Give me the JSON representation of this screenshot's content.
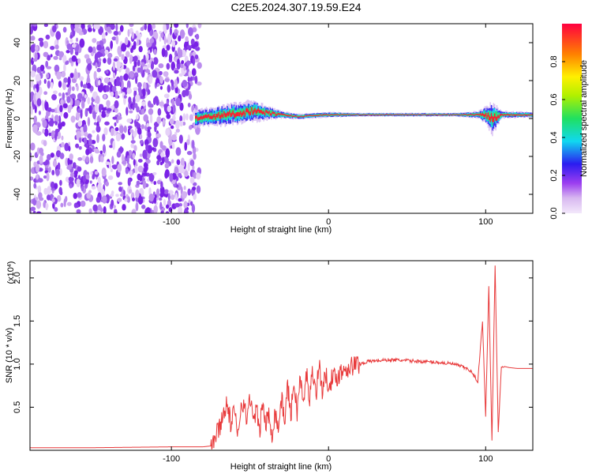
{
  "title": "C2E5.2024.307.19.59.E24",
  "chart_data": [
    {
      "type": "heatmap",
      "xlabel": "Height of straight line (km)",
      "ylabel": "Frequency (Hz)",
      "xlim": [
        -190,
        130
      ],
      "ylim": [
        -50,
        50
      ],
      "xticks": [
        -100,
        0,
        100
      ],
      "xtick_labels": [
        "-100",
        "0",
        "100"
      ],
      "yticks": [
        40,
        20,
        0,
        -20,
        -40
      ],
      "ytick_labels": [
        "40",
        "20",
        "0",
        "-20",
        "-40"
      ],
      "noise_region_x": [
        -190,
        -82
      ],
      "signal_track": {
        "x": [
          -85,
          -75,
          -65,
          -55,
          -48,
          -40,
          -30,
          -20,
          -10,
          0,
          20,
          40,
          60,
          80,
          95,
          100,
          104,
          110,
          130
        ],
        "freq": [
          0,
          1,
          2,
          3,
          4,
          3,
          2,
          1,
          1.5,
          2,
          2,
          2,
          2,
          2,
          2,
          2,
          0,
          2,
          2
        ],
        "spread": [
          5,
          5,
          6,
          6,
          6,
          4,
          2,
          1.5,
          1.5,
          1.5,
          1,
          1,
          1,
          1,
          2,
          5,
          9,
          2,
          1.5
        ]
      },
      "colorbar": {
        "label": "Normalized spectral amplitude",
        "range": [
          0,
          1
        ],
        "ticks": [
          0.0,
          0.2,
          0.4,
          0.6,
          0.8
        ],
        "tick_labels": [
          "0.0",
          "0.2",
          "0.4",
          "0.6",
          "0.8"
        ]
      }
    },
    {
      "type": "line",
      "xlabel": "Height of straight line (km)",
      "ylabel": "SNR (10 * v/v)",
      "scale_label": "(x10^4)",
      "scale_base": "(x10",
      "scale_exp": "4",
      "xlim": [
        -190,
        130
      ],
      "ylim": [
        0,
        2.2
      ],
      "xticks": [
        -100,
        0,
        100
      ],
      "xtick_labels": [
        "-100",
        "0",
        "100"
      ],
      "yticks": [
        0.5,
        1.0,
        1.5,
        2.0
      ],
      "ytick_labels": [
        "0.5",
        "1.0",
        "1.5",
        "2.0"
      ],
      "color": "#e8393a",
      "series": [
        {
          "x": [
            -190,
            -150,
            -100,
            -80,
            -75,
            -72,
            -68,
            -65,
            -62,
            -60,
            -58,
            -55,
            -52,
            -50,
            -48,
            -46,
            -44,
            -42,
            -40,
            -38,
            -36,
            -34,
            -32,
            -30,
            -28,
            -26,
            -24,
            -22,
            -20,
            -18,
            -16,
            -14,
            -12,
            -10,
            -8,
            -6,
            -4,
            -2,
            0,
            5,
            10,
            15,
            20,
            25,
            30,
            40,
            50,
            60,
            70,
            80,
            85,
            90,
            95,
            98,
            100,
            102,
            104,
            106,
            108,
            110,
            115,
            120,
            130
          ],
          "y": [
            0.03,
            0.03,
            0.04,
            0.04,
            0.05,
            0.15,
            0.35,
            0.55,
            0.3,
            0.45,
            0.2,
            0.6,
            0.35,
            0.65,
            0.3,
            0.5,
            0.2,
            0.55,
            0.3,
            0.4,
            0.2,
            0.45,
            0.25,
            0.6,
            0.35,
            0.75,
            0.4,
            0.8,
            0.45,
            0.85,
            0.5,
            0.9,
            0.6,
            0.95,
            0.65,
            1.0,
            0.7,
            0.85,
            0.8,
            0.85,
            0.95,
            0.98,
            1.0,
            1.03,
            1.04,
            1.05,
            1.04,
            1.03,
            1.02,
            1.0,
            0.97,
            0.93,
            0.8,
            1.5,
            0.4,
            1.9,
            0.1,
            2.15,
            0.2,
            0.98,
            0.96,
            0.95,
            0.95
          ]
        }
      ]
    }
  ]
}
